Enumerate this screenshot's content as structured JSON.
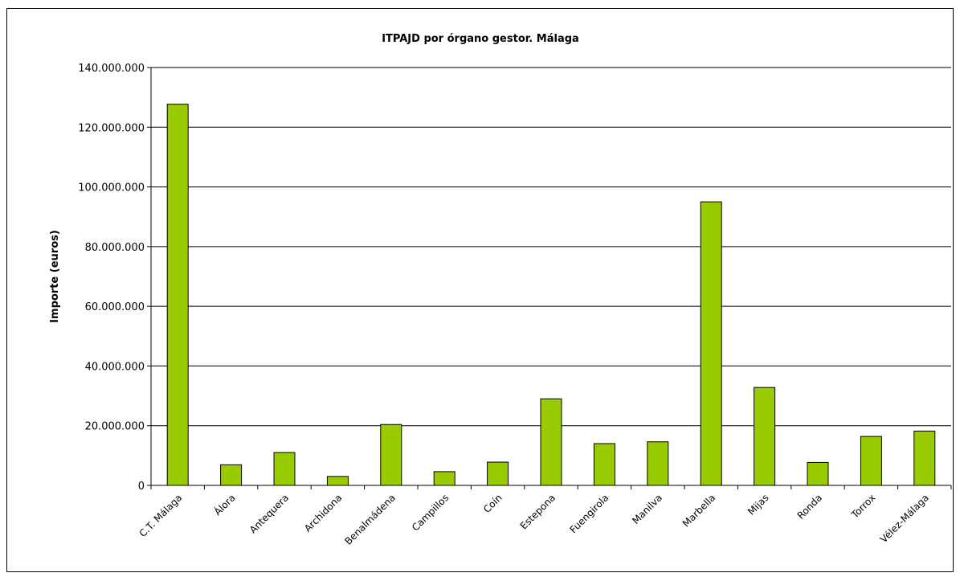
{
  "chart_data": {
    "type": "bar",
    "title": "ITPAJD por órgano gestor. Málaga",
    "xlabel": "",
    "ylabel": "Importe (euros)",
    "ylim": [
      0,
      140000000
    ],
    "y_ticks": [
      0,
      20000000,
      40000000,
      60000000,
      80000000,
      100000000,
      120000000,
      140000000
    ],
    "y_tick_labels": [
      "0",
      "20.000.000",
      "40.000.000",
      "60.000.000",
      "80.000.000",
      "100.000.000",
      "120.000.000",
      "140.000.000"
    ],
    "grid": true,
    "bar_color": "#99cc00",
    "categories": [
      "C.T. Málaga",
      "Álora",
      "Antequera",
      "Archidona",
      "Benalmádena",
      "Campillos",
      "Coín",
      "Estepona",
      "Fuengirola",
      "Manilva",
      "Marbella",
      "Mijas",
      "Ronda",
      "Torrox",
      "Vélez-Málaga"
    ],
    "values": [
      127700000,
      6900000,
      11000000,
      3000000,
      20400000,
      4600000,
      7800000,
      29000000,
      14000000,
      14600000,
      95000000,
      32800000,
      7700000,
      16400000,
      18200000
    ]
  }
}
